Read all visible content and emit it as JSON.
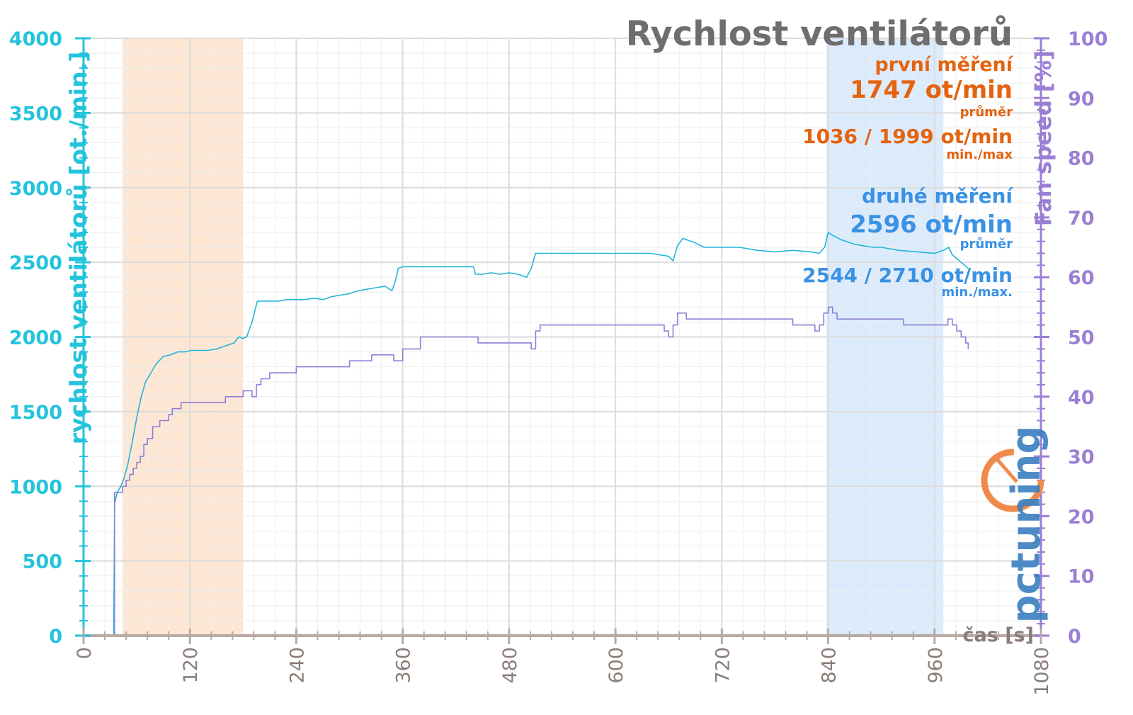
{
  "chart_data": {
    "type": "line",
    "title": "Rychlost ventilátorů",
    "xlabel": "čas [s]",
    "ylabel_left": "rychlost ventilátorů [ot./min.]",
    "ylabel_right": "Fan speed [%]",
    "xlim": [
      0,
      1080
    ],
    "ylim_left": [
      0,
      4000
    ],
    "ylim_right": [
      0,
      100
    ],
    "x_ticks": [
      "0",
      "120",
      "240",
      "360",
      "480",
      "600",
      "720",
      "840",
      "960",
      "1080"
    ],
    "y_left_ticks": [
      "0",
      "500",
      "1000",
      "1500",
      "2000",
      "2500",
      "3000",
      "3500",
      "4000"
    ],
    "y_right_ticks": [
      "0",
      "10",
      "20",
      "30",
      "40",
      "50",
      "60",
      "70",
      "80",
      "90",
      "100"
    ],
    "grid": true,
    "shaded_regions": [
      {
        "name": "první měření",
        "x": [
          44,
          180
        ],
        "color": "#fde3cc"
      },
      {
        "name": "druhé měření",
        "x": [
          838,
          970
        ],
        "color": "#d6e7fb"
      }
    ],
    "series": [
      {
        "axis": "left",
        "color": "#23b5d8",
        "x": [
          0,
          34,
          35,
          38,
          42,
          46,
          50,
          55,
          60,
          65,
          70,
          76,
          82,
          90,
          98,
          106,
          114,
          122,
          130,
          140,
          150,
          160,
          170,
          175,
          180,
          184,
          190,
          196,
          202,
          210,
          220,
          230,
          240,
          250,
          260,
          270,
          280,
          290,
          300,
          310,
          320,
          330,
          340,
          348,
          352,
          355,
          360,
          370,
          380,
          400,
          420,
          440,
          442,
          450,
          460,
          470,
          480,
          490,
          500,
          505,
          510,
          520,
          540,
          560,
          580,
          600,
          620,
          640,
          650,
          660,
          665,
          670,
          676,
          690,
          700,
          720,
          740,
          760,
          780,
          800,
          820,
          830,
          836,
          840,
          845,
          855,
          870,
          890,
          900,
          920,
          940,
          960,
          970,
          976,
          980,
          990,
          998
        ],
        "values": [
          0,
          0,
          880,
          960,
          1000,
          1060,
          1150,
          1300,
          1460,
          1600,
          1700,
          1760,
          1820,
          1870,
          1880,
          1900,
          1900,
          1910,
          1910,
          1910,
          1920,
          1940,
          1960,
          2000,
          1990,
          2000,
          2100,
          2240,
          2240,
          2240,
          2240,
          2250,
          2250,
          2250,
          2260,
          2250,
          2270,
          2280,
          2290,
          2310,
          2320,
          2330,
          2340,
          2310,
          2380,
          2460,
          2470,
          2470,
          2470,
          2470,
          2470,
          2470,
          2420,
          2420,
          2430,
          2420,
          2430,
          2420,
          2400,
          2460,
          2560,
          2560,
          2560,
          2560,
          2560,
          2560,
          2560,
          2560,
          2550,
          2540,
          2510,
          2610,
          2660,
          2630,
          2600,
          2600,
          2600,
          2580,
          2570,
          2580,
          2570,
          2560,
          2600,
          2700,
          2680,
          2650,
          2620,
          2600,
          2600,
          2580,
          2570,
          2560,
          2580,
          2600,
          2550,
          2500,
          2460
        ]
      },
      {
        "axis": "right",
        "color": "#8f7fd6",
        "x": [
          0,
          34,
          35,
          40,
          44,
          48,
          52,
          56,
          60,
          64,
          68,
          72,
          78,
          86,
          96,
          100,
          110,
          120,
          150,
          160,
          175,
          180,
          185,
          190,
          195,
          200,
          210,
          240,
          270,
          295,
          300,
          320,
          325,
          340,
          345,
          350,
          355,
          360,
          380,
          420,
          440,
          445,
          470,
          480,
          500,
          505,
          510,
          515,
          540,
          600,
          640,
          650,
          655,
          660,
          665,
          670,
          675,
          680,
          700,
          760,
          800,
          820,
          825,
          830,
          835,
          840,
          845,
          850,
          860,
          880,
          900,
          920,
          925,
          940,
          960,
          970,
          975,
          980,
          985,
          990,
          995,
          998
        ],
        "values": [
          0,
          0,
          24,
          24,
          25,
          26,
          27,
          28,
          29,
          30,
          32,
          33,
          35,
          36,
          37,
          38,
          39,
          39,
          39,
          40,
          40,
          41,
          41,
          40,
          42,
          43,
          44,
          45,
          45,
          45,
          46,
          46,
          47,
          47,
          47,
          46,
          46,
          48,
          50,
          50,
          50,
          49,
          49,
          49,
          49,
          48,
          51,
          52,
          52,
          52,
          52,
          52,
          51,
          50,
          52,
          54,
          54,
          53,
          53,
          53,
          52,
          52,
          51,
          52,
          54,
          55,
          54,
          53,
          53,
          53,
          53,
          53,
          52,
          52,
          52,
          52,
          53,
          52,
          51,
          50,
          49,
          48
        ]
      }
    ]
  },
  "annotations": {
    "first": {
      "label": "první měření",
      "avg_value": "1747 ot/min",
      "avg_caption": "průměr",
      "minmax_value": "1036 / 1999 ot/min",
      "minmax_caption": "min./max",
      "color": "#e4630f"
    },
    "second": {
      "label": "druhé měření",
      "avg_value": "2596 ot/min",
      "avg_caption": "průměr",
      "minmax_value": "2544 / 2710 ot/min",
      "minmax_caption": "min./max.",
      "color": "#3a92e4"
    }
  },
  "logo": {
    "text": "pctuning"
  },
  "colors": {
    "left_axis": "#23c3dc",
    "right_axis": "#9b7fd4",
    "title": "#6e6e6e",
    "x_axis": "#b9aaa4"
  }
}
